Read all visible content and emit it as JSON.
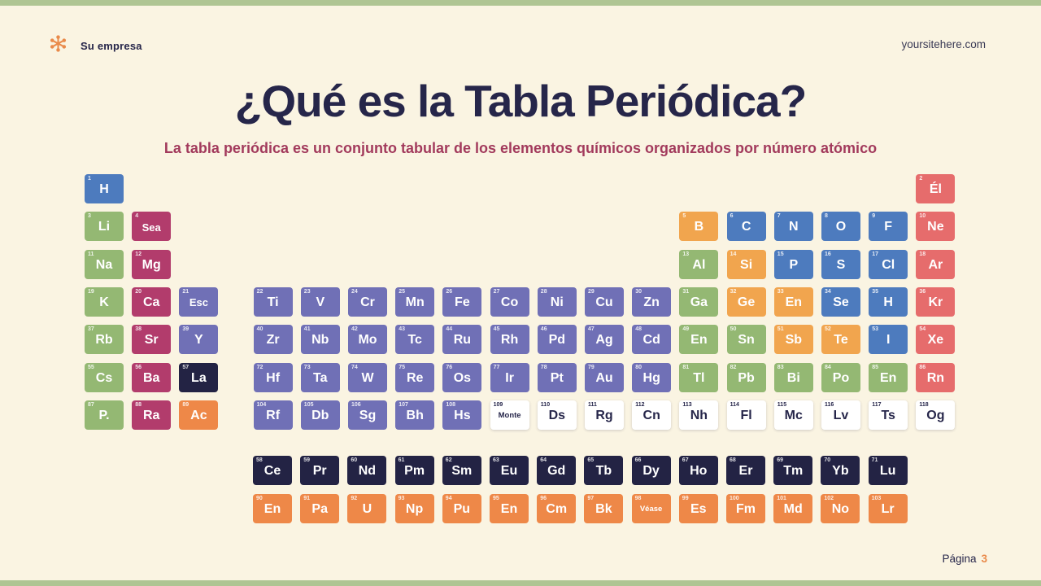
{
  "header": {
    "company": "Su empresa",
    "website": "yoursitehere.com",
    "logo_icon": "asterisk-flower-icon",
    "logo_color": "#E98A4A"
  },
  "hero": {
    "title": "¿Qué es la Tabla Periódica?",
    "subtitle": "La tabla periódica es un conjunto tabular de los elementos químicos organizados por número atómico"
  },
  "footer": {
    "page_label": "Página",
    "page_number": "3"
  },
  "colors": {
    "blue": "#4D7BBE",
    "red": "#E66C6C",
    "green": "#94B873",
    "magenta": "#B23C6C",
    "purple": "#7070B6",
    "amber": "#F1A54E",
    "orange": "#EE8848",
    "navy": "#232344",
    "white": "#FFFFFF",
    "strip": "#AFC593",
    "background": "#FAF4E2",
    "title_text": "#26264A",
    "subtitle_text": "#A23A5C",
    "accent_orange": "#E98A4A"
  },
  "periodic_table": {
    "elements": [
      {
        "n": 1,
        "sym": "H",
        "row": 1,
        "col": 1,
        "c": "blue"
      },
      {
        "n": 2,
        "sym": "Él",
        "row": 1,
        "col": 18,
        "c": "red"
      },
      {
        "n": 3,
        "sym": "Li",
        "row": 2,
        "col": 1,
        "c": "green"
      },
      {
        "n": 4,
        "sym": "Sea",
        "row": 2,
        "col": 2,
        "c": "magenta"
      },
      {
        "n": 5,
        "sym": "B",
        "row": 2,
        "col": 13,
        "c": "amber"
      },
      {
        "n": 6,
        "sym": "C",
        "row": 2,
        "col": 14,
        "c": "blue"
      },
      {
        "n": 7,
        "sym": "N",
        "row": 2,
        "col": 15,
        "c": "blue"
      },
      {
        "n": 8,
        "sym": "O",
        "row": 2,
        "col": 16,
        "c": "blue"
      },
      {
        "n": 9,
        "sym": "F",
        "row": 2,
        "col": 17,
        "c": "blue"
      },
      {
        "n": 10,
        "sym": "Ne",
        "row": 2,
        "col": 18,
        "c": "red"
      },
      {
        "n": 11,
        "sym": "Na",
        "row": 3,
        "col": 1,
        "c": "green"
      },
      {
        "n": 12,
        "sym": "Mg",
        "row": 3,
        "col": 2,
        "c": "magenta"
      },
      {
        "n": 13,
        "sym": "Al",
        "row": 3,
        "col": 13,
        "c": "green"
      },
      {
        "n": 14,
        "sym": "Si",
        "row": 3,
        "col": 14,
        "c": "amber"
      },
      {
        "n": 15,
        "sym": "P",
        "row": 3,
        "col": 15,
        "c": "blue"
      },
      {
        "n": 16,
        "sym": "S",
        "row": 3,
        "col": 16,
        "c": "blue"
      },
      {
        "n": 17,
        "sym": "Cl",
        "row": 3,
        "col": 17,
        "c": "blue"
      },
      {
        "n": 18,
        "sym": "Ar",
        "row": 3,
        "col": 18,
        "c": "red"
      },
      {
        "n": 19,
        "sym": "K",
        "row": 4,
        "col": 1,
        "c": "green"
      },
      {
        "n": 20,
        "sym": "Ca",
        "row": 4,
        "col": 2,
        "c": "magenta"
      },
      {
        "n": 21,
        "sym": "Esc",
        "row": 4,
        "col": 3,
        "c": "purple"
      },
      {
        "n": 22,
        "sym": "Ti",
        "row": 4,
        "col": 4,
        "c": "purple"
      },
      {
        "n": 23,
        "sym": "V",
        "row": 4,
        "col": 5,
        "c": "purple"
      },
      {
        "n": 24,
        "sym": "Cr",
        "row": 4,
        "col": 6,
        "c": "purple"
      },
      {
        "n": 25,
        "sym": "Mn",
        "row": 4,
        "col": 7,
        "c": "purple"
      },
      {
        "n": 26,
        "sym": "Fe",
        "row": 4,
        "col": 8,
        "c": "purple"
      },
      {
        "n": 27,
        "sym": "Co",
        "row": 4,
        "col": 9,
        "c": "purple"
      },
      {
        "n": 28,
        "sym": "Ni",
        "row": 4,
        "col": 10,
        "c": "purple"
      },
      {
        "n": 29,
        "sym": "Cu",
        "row": 4,
        "col": 11,
        "c": "purple"
      },
      {
        "n": 30,
        "sym": "Zn",
        "row": 4,
        "col": 12,
        "c": "purple"
      },
      {
        "n": 31,
        "sym": "Ga",
        "row": 4,
        "col": 13,
        "c": "green"
      },
      {
        "n": 32,
        "sym": "Ge",
        "row": 4,
        "col": 14,
        "c": "amber"
      },
      {
        "n": 33,
        "sym": "En",
        "row": 4,
        "col": 15,
        "c": "amber"
      },
      {
        "n": 34,
        "sym": "Se",
        "row": 4,
        "col": 16,
        "c": "blue"
      },
      {
        "n": 35,
        "sym": "H",
        "row": 4,
        "col": 17,
        "c": "blue"
      },
      {
        "n": 36,
        "sym": "Kr",
        "row": 4,
        "col": 18,
        "c": "red"
      },
      {
        "n": 37,
        "sym": "Rb",
        "row": 5,
        "col": 1,
        "c": "green"
      },
      {
        "n": 38,
        "sym": "Sr",
        "row": 5,
        "col": 2,
        "c": "magenta"
      },
      {
        "n": 39,
        "sym": "Y",
        "row": 5,
        "col": 3,
        "c": "purple"
      },
      {
        "n": 40,
        "sym": "Zr",
        "row": 5,
        "col": 4,
        "c": "purple"
      },
      {
        "n": 41,
        "sym": "Nb",
        "row": 5,
        "col": 5,
        "c": "purple"
      },
      {
        "n": 42,
        "sym": "Mo",
        "row": 5,
        "col": 6,
        "c": "purple"
      },
      {
        "n": 43,
        "sym": "Tc",
        "row": 5,
        "col": 7,
        "c": "purple"
      },
      {
        "n": 44,
        "sym": "Ru",
        "row": 5,
        "col": 8,
        "c": "purple"
      },
      {
        "n": 45,
        "sym": "Rh",
        "row": 5,
        "col": 9,
        "c": "purple"
      },
      {
        "n": 46,
        "sym": "Pd",
        "row": 5,
        "col": 10,
        "c": "purple"
      },
      {
        "n": 47,
        "sym": "Ag",
        "row": 5,
        "col": 11,
        "c": "purple"
      },
      {
        "n": 48,
        "sym": "Cd",
        "row": 5,
        "col": 12,
        "c": "purple"
      },
      {
        "n": 49,
        "sym": "En",
        "row": 5,
        "col": 13,
        "c": "green"
      },
      {
        "n": 50,
        "sym": "Sn",
        "row": 5,
        "col": 14,
        "c": "green"
      },
      {
        "n": 51,
        "sym": "Sb",
        "row": 5,
        "col": 15,
        "c": "amber"
      },
      {
        "n": 52,
        "sym": "Te",
        "row": 5,
        "col": 16,
        "c": "amber"
      },
      {
        "n": 53,
        "sym": "I",
        "row": 5,
        "col": 17,
        "c": "blue"
      },
      {
        "n": 54,
        "sym": "Xe",
        "row": 5,
        "col": 18,
        "c": "red"
      },
      {
        "n": 55,
        "sym": "Cs",
        "row": 6,
        "col": 1,
        "c": "green"
      },
      {
        "n": 56,
        "sym": "Ba",
        "row": 6,
        "col": 2,
        "c": "magenta"
      },
      {
        "n": 57,
        "sym": "La",
        "row": 6,
        "col": 3,
        "c": "navy"
      },
      {
        "n": 72,
        "sym": "Hf",
        "row": 6,
        "col": 4,
        "c": "purple"
      },
      {
        "n": 73,
        "sym": "Ta",
        "row": 6,
        "col": 5,
        "c": "purple"
      },
      {
        "n": 74,
        "sym": "W",
        "row": 6,
        "col": 6,
        "c": "purple"
      },
      {
        "n": 75,
        "sym": "Re",
        "row": 6,
        "col": 7,
        "c": "purple"
      },
      {
        "n": 76,
        "sym": "Os",
        "row": 6,
        "col": 8,
        "c": "purple"
      },
      {
        "n": 77,
        "sym": "Ir",
        "row": 6,
        "col": 9,
        "c": "purple"
      },
      {
        "n": 78,
        "sym": "Pt",
        "row": 6,
        "col": 10,
        "c": "purple"
      },
      {
        "n": 79,
        "sym": "Au",
        "row": 6,
        "col": 11,
        "c": "purple"
      },
      {
        "n": 80,
        "sym": "Hg",
        "row": 6,
        "col": 12,
        "c": "purple"
      },
      {
        "n": 81,
        "sym": "Tl",
        "row": 6,
        "col": 13,
        "c": "green"
      },
      {
        "n": 82,
        "sym": "Pb",
        "row": 6,
        "col": 14,
        "c": "green"
      },
      {
        "n": 83,
        "sym": "Bi",
        "row": 6,
        "col": 15,
        "c": "green"
      },
      {
        "n": 84,
        "sym": "Po",
        "row": 6,
        "col": 16,
        "c": "green"
      },
      {
        "n": 85,
        "sym": "En",
        "row": 6,
        "col": 17,
        "c": "green"
      },
      {
        "n": 86,
        "sym": "Rn",
        "row": 6,
        "col": 18,
        "c": "red"
      },
      {
        "n": 87,
        "sym": "P.",
        "row": 7,
        "col": 1,
        "c": "green"
      },
      {
        "n": 88,
        "sym": "Ra",
        "row": 7,
        "col": 2,
        "c": "magenta"
      },
      {
        "n": 89,
        "sym": "Ac",
        "row": 7,
        "col": 3,
        "c": "orange"
      },
      {
        "n": 104,
        "sym": "Rf",
        "row": 7,
        "col": 4,
        "c": "purple"
      },
      {
        "n": 105,
        "sym": "Db",
        "row": 7,
        "col": 5,
        "c": "purple"
      },
      {
        "n": 106,
        "sym": "Sg",
        "row": 7,
        "col": 6,
        "c": "purple"
      },
      {
        "n": 107,
        "sym": "Bh",
        "row": 7,
        "col": 7,
        "c": "purple"
      },
      {
        "n": 108,
        "sym": "Hs",
        "row": 7,
        "col": 8,
        "c": "purple"
      },
      {
        "n": 109,
        "sym": "Monte",
        "row": 7,
        "col": 9,
        "c": "white"
      },
      {
        "n": 110,
        "sym": "Ds",
        "row": 7,
        "col": 10,
        "c": "white"
      },
      {
        "n": 111,
        "sym": "Rg",
        "row": 7,
        "col": 11,
        "c": "white"
      },
      {
        "n": 112,
        "sym": "Cn",
        "row": 7,
        "col": 12,
        "c": "white"
      },
      {
        "n": 113,
        "sym": "Nh",
        "row": 7,
        "col": 13,
        "c": "white"
      },
      {
        "n": 114,
        "sym": "Fl",
        "row": 7,
        "col": 14,
        "c": "white"
      },
      {
        "n": 115,
        "sym": "Mc",
        "row": 7,
        "col": 15,
        "c": "white"
      },
      {
        "n": 116,
        "sym": "Lv",
        "row": 7,
        "col": 16,
        "c": "white"
      },
      {
        "n": 117,
        "sym": "Ts",
        "row": 7,
        "col": 17,
        "c": "white"
      },
      {
        "n": 118,
        "sym": "Og",
        "row": 7,
        "col": 18,
        "c": "white"
      },
      {
        "n": 58,
        "sym": "Ce",
        "row": "L",
        "col": 1,
        "c": "navy"
      },
      {
        "n": 59,
        "sym": "Pr",
        "row": "L",
        "col": 2,
        "c": "navy"
      },
      {
        "n": 60,
        "sym": "Nd",
        "row": "L",
        "col": 3,
        "c": "navy"
      },
      {
        "n": 61,
        "sym": "Pm",
        "row": "L",
        "col": 4,
        "c": "navy"
      },
      {
        "n": 62,
        "sym": "Sm",
        "row": "L",
        "col": 5,
        "c": "navy"
      },
      {
        "n": 63,
        "sym": "Eu",
        "row": "L",
        "col": 6,
        "c": "navy"
      },
      {
        "n": 64,
        "sym": "Gd",
        "row": "L",
        "col": 7,
        "c": "navy"
      },
      {
        "n": 65,
        "sym": "Tb",
        "row": "L",
        "col": 8,
        "c": "navy"
      },
      {
        "n": 66,
        "sym": "Dy",
        "row": "L",
        "col": 9,
        "c": "navy"
      },
      {
        "n": 67,
        "sym": "Ho",
        "row": "L",
        "col": 10,
        "c": "navy"
      },
      {
        "n": 68,
        "sym": "Er",
        "row": "L",
        "col": 11,
        "c": "navy"
      },
      {
        "n": 69,
        "sym": "Tm",
        "row": "L",
        "col": 12,
        "c": "navy"
      },
      {
        "n": 70,
        "sym": "Yb",
        "row": "L",
        "col": 13,
        "c": "navy"
      },
      {
        "n": 71,
        "sym": "Lu",
        "row": "L",
        "col": 14,
        "c": "navy"
      },
      {
        "n": 90,
        "sym": "En",
        "row": "A",
        "col": 1,
        "c": "orange"
      },
      {
        "n": 91,
        "sym": "Pa",
        "row": "A",
        "col": 2,
        "c": "orange"
      },
      {
        "n": 92,
        "sym": "U",
        "row": "A",
        "col": 3,
        "c": "orange"
      },
      {
        "n": 93,
        "sym": "Np",
        "row": "A",
        "col": 4,
        "c": "orange"
      },
      {
        "n": 94,
        "sym": "Pu",
        "row": "A",
        "col": 5,
        "c": "orange"
      },
      {
        "n": 95,
        "sym": "En",
        "row": "A",
        "col": 6,
        "c": "orange"
      },
      {
        "n": 96,
        "sym": "Cm",
        "row": "A",
        "col": 7,
        "c": "orange"
      },
      {
        "n": 97,
        "sym": "Bk",
        "row": "A",
        "col": 8,
        "c": "orange"
      },
      {
        "n": 98,
        "sym": "Véase",
        "row": "A",
        "col": 9,
        "c": "orange"
      },
      {
        "n": 99,
        "sym": "Es",
        "row": "A",
        "col": 10,
        "c": "orange"
      },
      {
        "n": 100,
        "sym": "Fm",
        "row": "A",
        "col": 11,
        "c": "orange"
      },
      {
        "n": 101,
        "sym": "Md",
        "row": "A",
        "col": 12,
        "c": "orange"
      },
      {
        "n": 102,
        "sym": "No",
        "row": "A",
        "col": 13,
        "c": "orange"
      },
      {
        "n": 103,
        "sym": "Lr",
        "row": "A",
        "col": 14,
        "c": "orange"
      }
    ]
  }
}
